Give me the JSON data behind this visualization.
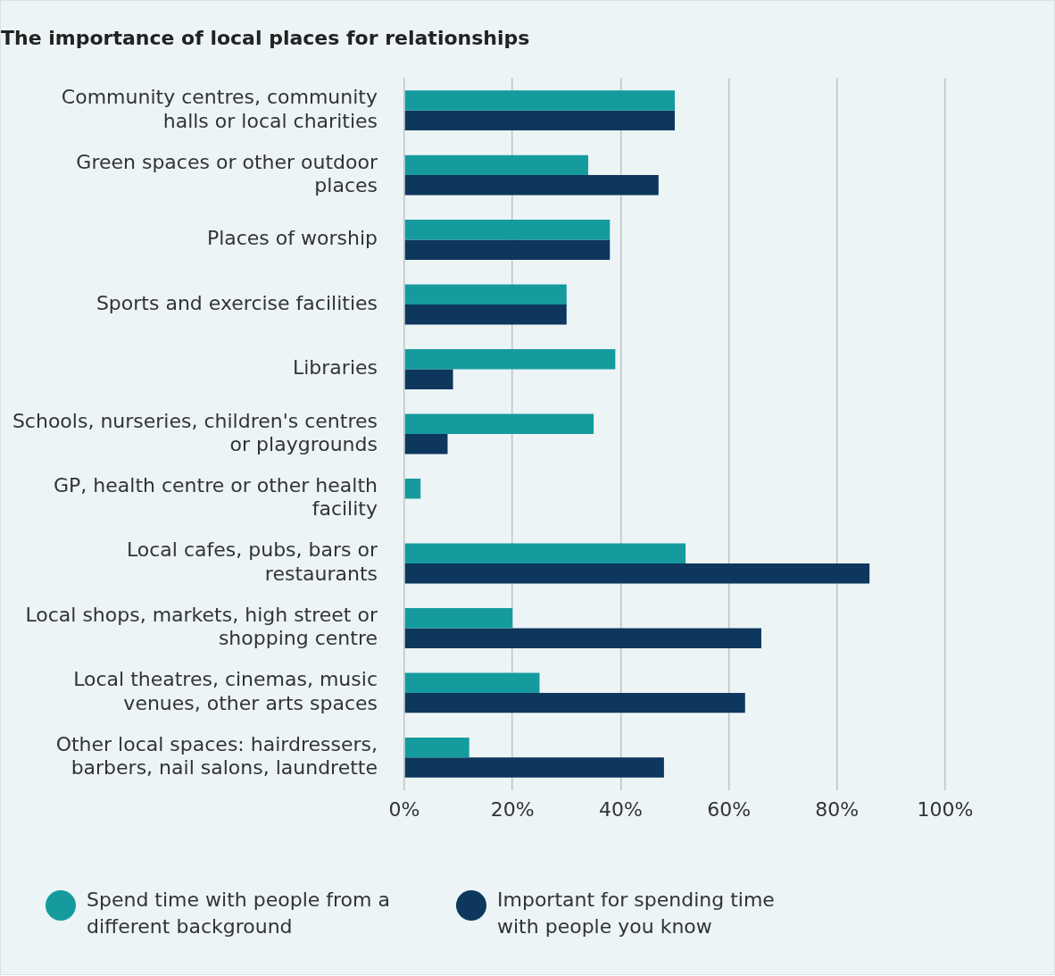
{
  "chart_data": {
    "type": "bar",
    "orientation": "horizontal",
    "title": "The importance of local places for relationships",
    "categories": [
      "Community centres, community halls or local charities",
      "Green spaces or other outdoor places",
      "Places of worship",
      "Sports and exercise facilities",
      "Libraries",
      "Schools, nurseries, children's centres or playgrounds",
      "GP, health centre or other health facility",
      "Local cafes, pubs, bars or restaurants",
      "Local shops, markets, high street or shopping centre",
      "Local theatres, cinemas, music venues, other arts spaces",
      "Other local spaces: hairdressers, barbers, nail salons, laundrette"
    ],
    "series": [
      {
        "name": "Spend time with people from a different background",
        "color": "#159b9e",
        "values": [
          50,
          34,
          38,
          30,
          39,
          35,
          3,
          52,
          20,
          25,
          12
        ]
      },
      {
        "name": "Important for spending time with people you know",
        "color": "#0d375c",
        "values": [
          50,
          47,
          38,
          30,
          9,
          8,
          0,
          86,
          66,
          63,
          48
        ]
      }
    ],
    "xlim": [
      0,
      100
    ],
    "xticks": [
      {
        "value": 0,
        "label": "0%"
      },
      {
        "value": 20,
        "label": "20%"
      },
      {
        "value": 40,
        "label": "40%"
      },
      {
        "value": 60,
        "label": "60%"
      },
      {
        "value": 80,
        "label": "80%"
      },
      {
        "value": 100,
        "label": "100%"
      }
    ],
    "grid": "x",
    "legend": "bottom"
  }
}
